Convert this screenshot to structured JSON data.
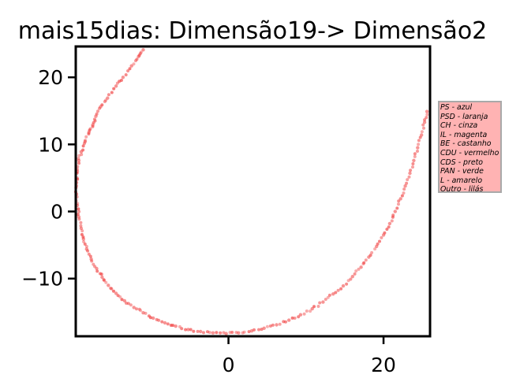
{
  "chart_data": {
    "type": "scatter",
    "title": "mais15dias: Dimensão19-> Dimensão2",
    "xlabel": "",
    "ylabel": "",
    "xlim": [
      -19.7,
      26
    ],
    "ylim": [
      -18.6,
      24.6
    ],
    "xticks": [
      0,
      20
    ],
    "yticks": [
      -10,
      0,
      10,
      20
    ],
    "tick_labels": {
      "x": [
        "0",
        "20"
      ],
      "y": [
        "−10",
        "0",
        "10",
        "20"
      ]
    },
    "grid": false,
    "marker_color": "#f03c3c",
    "legend_placement": "outside-right",
    "legend_lines": [
      "PS - azul",
      "PSD - laranja",
      "CH - cinza",
      "IL - magenta",
      "BE - castanho",
      "CDU - vermelho",
      "CDS - preto",
      "PAN - verde",
      "L - amarelo",
      "Outro - lilás"
    ],
    "series": [
      {
        "points": [
          [
            -11.0,
            24.1
          ],
          [
            -11.6,
            23.1
          ],
          [
            -12.5,
            21.7
          ],
          [
            -13.6,
            20.0
          ],
          [
            -14.5,
            18.7
          ],
          [
            -15.6,
            16.9
          ],
          [
            -16.5,
            15.6
          ],
          [
            -17.1,
            14.2
          ],
          [
            -17.5,
            12.9
          ],
          [
            -18.0,
            11.8
          ],
          [
            -18.5,
            10.4
          ],
          [
            -19.0,
            8.9
          ],
          [
            -19.3,
            7.6
          ],
          [
            -19.5,
            6.0
          ],
          [
            -19.6,
            4.3
          ],
          [
            -19.6,
            2.6
          ],
          [
            -19.5,
            0.9
          ],
          [
            -19.3,
            -0.8
          ],
          [
            -19.0,
            -2.5
          ],
          [
            -18.7,
            -4.1
          ],
          [
            -18.3,
            -5.6
          ],
          [
            -17.7,
            -7.1
          ],
          [
            -17.0,
            -8.5
          ],
          [
            -16.3,
            -9.8
          ],
          [
            -15.5,
            -11.0
          ],
          [
            -14.5,
            -12.2
          ],
          [
            -13.4,
            -13.3
          ],
          [
            -12.2,
            -14.3
          ],
          [
            -11.0,
            -15.1
          ],
          [
            -9.7,
            -15.9
          ],
          [
            -8.2,
            -16.6
          ],
          [
            -6.8,
            -17.1
          ],
          [
            -5.2,
            -17.6
          ],
          [
            -3.6,
            -17.9
          ],
          [
            -2.0,
            -18.1
          ],
          [
            -0.3,
            -18.2
          ],
          [
            1.3,
            -18.1
          ],
          [
            3.0,
            -17.8
          ],
          [
            4.6,
            -17.4
          ],
          [
            6.2,
            -16.9
          ],
          [
            7.8,
            -16.2
          ],
          [
            9.3,
            -15.4
          ],
          [
            10.8,
            -14.5
          ],
          [
            12.2,
            -13.5
          ],
          [
            13.5,
            -12.3
          ],
          [
            14.8,
            -11.1
          ],
          [
            16.0,
            -9.7
          ],
          [
            17.1,
            -8.3
          ],
          [
            18.1,
            -6.8
          ],
          [
            19.1,
            -5.2
          ],
          [
            20.0,
            -3.5
          ],
          [
            20.8,
            -1.8
          ],
          [
            21.5,
            0.0
          ],
          [
            22.2,
            1.9
          ],
          [
            22.8,
            3.8
          ],
          [
            23.4,
            5.7
          ],
          [
            23.9,
            7.6
          ],
          [
            24.4,
            9.5
          ],
          [
            24.9,
            11.4
          ],
          [
            25.3,
            13.3
          ],
          [
            25.6,
            14.9
          ]
        ]
      }
    ]
  }
}
